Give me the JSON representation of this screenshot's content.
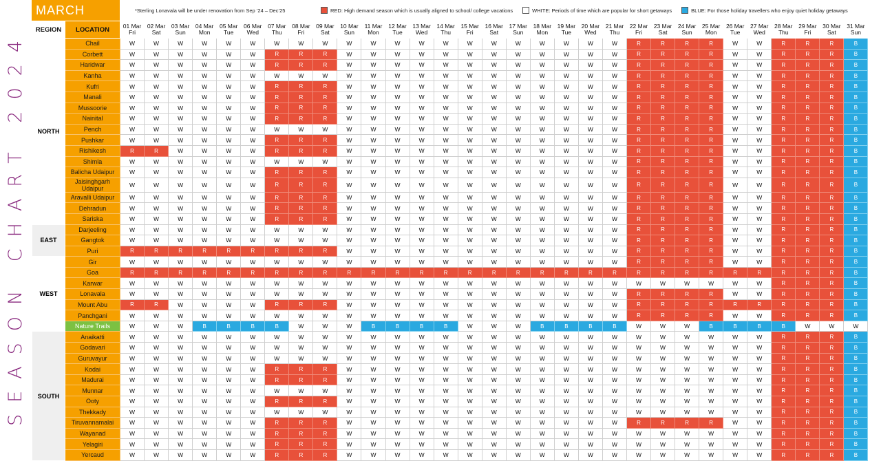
{
  "side_title": "SEASON CHART 2024",
  "month": "MARCH",
  "legend": {
    "note": "*Sterling Lonavala will be under renovation from Sep ’24 – Dec’25",
    "red": "RED: High demand season which is usually aligned to school/ college vacations",
    "white": "WHITE: Periods of time which are popular for short getaways",
    "blue": "BLUE: For those holiday travellers who enjoy quiet holiday getaways"
  },
  "colors": {
    "red": "#e8513a",
    "white": "#ffffff",
    "blue": "#2aa9e0",
    "orange": "#f6a000",
    "green": "#7cc142",
    "purple": "#8a2a7f"
  },
  "headers": {
    "region": "REGION",
    "location": "LOCATION"
  },
  "days": [
    {
      "date": "01 Mar",
      "dow": "Fri"
    },
    {
      "date": "02 Mar",
      "dow": "Sat"
    },
    {
      "date": "03 Mar",
      "dow": "Sun"
    },
    {
      "date": "04 Mar",
      "dow": "Mon"
    },
    {
      "date": "05 Mar",
      "dow": "Tue"
    },
    {
      "date": "06 Mar",
      "dow": "Wed"
    },
    {
      "date": "07 Mar",
      "dow": "Thu"
    },
    {
      "date": "08 Mar",
      "dow": "Fri"
    },
    {
      "date": "09 Mar",
      "dow": "Sat"
    },
    {
      "date": "10 Mar",
      "dow": "Sun"
    },
    {
      "date": "11 Mar",
      "dow": "Mon"
    },
    {
      "date": "12 Mar",
      "dow": "Tue"
    },
    {
      "date": "13 Mar",
      "dow": "Wed"
    },
    {
      "date": "14 Mar",
      "dow": "Thu"
    },
    {
      "date": "15 Mar",
      "dow": "Fri"
    },
    {
      "date": "16 Mar",
      "dow": "Sat"
    },
    {
      "date": "17 Mar",
      "dow": "Sun"
    },
    {
      "date": "18 Mar",
      "dow": "Mon"
    },
    {
      "date": "19 Mar",
      "dow": "Tue"
    },
    {
      "date": "20 Mar",
      "dow": "Wed"
    },
    {
      "date": "21 Mar",
      "dow": "Thu"
    },
    {
      "date": "22 Mar",
      "dow": "Fri"
    },
    {
      "date": "23 Mar",
      "dow": "Sat"
    },
    {
      "date": "24 Mar",
      "dow": "Sun"
    },
    {
      "date": "25 Mar",
      "dow": "Mon"
    },
    {
      "date": "26 Mar",
      "dow": "Tue"
    },
    {
      "date": "27 Mar",
      "dow": "Wed"
    },
    {
      "date": "28 Mar",
      "dow": "Thu"
    },
    {
      "date": "29 Mar",
      "dow": "Fri"
    },
    {
      "date": "30 Mar",
      "dow": "Sat"
    },
    {
      "date": "31 Mar",
      "dow": "Sun"
    }
  ],
  "regions": [
    {
      "name": "NORTH",
      "locations": [
        {
          "name": "Chail",
          "codes": "WWWWWWWWWWWWWWWWWWWWWRRRRWWRRRB"
        },
        {
          "name": "Corbett",
          "codes": "WWWWWWRRRWWWWWWWWWWWWRRRRWWRRRB"
        },
        {
          "name": "Haridwar",
          "codes": "WWWWWWRRRWWWWWWWWWWWWRRRRWWRRRB"
        },
        {
          "name": "Kanha",
          "codes": "WWWWWWWWWWWWWWWWWWWWWRRRRWWRRRB"
        },
        {
          "name": "Kufri",
          "codes": "WWWWWWRRRWWWWWWWWWWWWRRRRWWRRRB"
        },
        {
          "name": "Manali",
          "codes": "WWWWWWRRRWWWWWWWWWWWWRRRRWWRRRB"
        },
        {
          "name": "Mussoorie",
          "codes": "WWWWWWRRRWWWWWWWWWWWWRRRRWWRRRB"
        },
        {
          "name": "Nainital",
          "codes": "WWWWWWRRRWWWWWWWWWWWWRRRRWWRRRB"
        },
        {
          "name": "Pench",
          "codes": "WWWWWWWWWWWWWWWWWWWWWRRRRWWRRRB"
        },
        {
          "name": "Pushkar",
          "codes": "WWWWWWRRRWWWWWWWWWWWWRRRRWWRRRB"
        },
        {
          "name": "Rishikesh",
          "codes": "RRWWWWRRRWWWWWWWWWWWWRRRRWWRRRB"
        },
        {
          "name": "Shimla",
          "codes": "WWWWWWWWWWWWWWWWWWWWWRRRRWWRRRB"
        },
        {
          "name": "Balicha Udaipur",
          "codes": "WWWWWWRRRWWWWWWWWWWWWRRRRWWRRRB"
        },
        {
          "name": "Jaisinghgarh Udaipur",
          "codes": "WWWWWWRRRWWWWWWWWWWWWRRRRWWRRRB"
        },
        {
          "name": "Aravalli Udaipur",
          "codes": "WWWWWWRRRWWWWWWWWWWWWRRRRWWRRRB"
        },
        {
          "name": "Dehradun",
          "codes": "WWWWWWRRRWWWWWWWWWWWWRRRRWWRRRB"
        },
        {
          "name": "Sariska",
          "codes": "WWWWWWRRRWWWWWWWWWWWWRRRRWWRRRB"
        }
      ]
    },
    {
      "name": "EAST",
      "locations": [
        {
          "name": "Darjeeling",
          "codes": "WWWWWWWWWWWWWWWWWWWWWRRRRWWRRRB"
        },
        {
          "name": "Gangtok",
          "codes": "WWWWWWWWWWWWWWWWWWWWWRRRRWWRRRB"
        },
        {
          "name": "Puri",
          "codes": "RRRRRRRRRWWWWWWWWWWWWRRRRWWRRRB"
        }
      ]
    },
    {
      "name": "WEST",
      "locations": [
        {
          "name": "Gir",
          "codes": "WWWWWWWWWWWWWWWWWWWWWRRRRWWRRRB"
        },
        {
          "name": "Goa",
          "codes": "RRRRRRRRRRRRRRRRRRRRRRRRRRRRRRB"
        },
        {
          "name": "Karwar",
          "codes": "WWWWWWWWWWWWWWWWWWWWWWWWWWWRRRB"
        },
        {
          "name": "Lonavala",
          "codes": "WWWWWWWWWWWWWWWWWWWWWRRRRWWRRRB"
        },
        {
          "name": "Mount Abu",
          "codes": "RRWWWWRRRWWWWWWWWWWWWRRRRRRRRRB"
        },
        {
          "name": "Panchgani",
          "codes": "WWWWWWWWWWWWWWWWWWWWWRRRRWWRRRB"
        },
        {
          "name": "Nature Trails",
          "green": true,
          "codes": "WWWBBBBWWWBBBBWWWBBBBWWWBBBBWWW"
        }
      ]
    },
    {
      "name": "SOUTH",
      "locations": [
        {
          "name": "Anaikatti",
          "codes": "WWWWWWWWWWWWWWWWWWWWWWWWWWWRRRB"
        },
        {
          "name": "Godavari",
          "codes": "WWWWWWWWWWWWWWWWWWWWWWWWWWWRRRB"
        },
        {
          "name": "Guruvayur",
          "codes": "WWWWWWWWWWWWWWWWWWWWWWWWWWWRRRB"
        },
        {
          "name": "Kodai",
          "codes": "WWWWWWRRRWWWWWWWWWWWWWWWWWWRRRB"
        },
        {
          "name": "Madurai",
          "codes": "WWWWWWRRRWWWWWWWWWWWWWWWWWWRRRB"
        },
        {
          "name": "Munnar",
          "codes": "WWWWWWWWWWWWWWWWWWWWWWWWWWWRRRB"
        },
        {
          "name": "Ooty",
          "codes": "WWWWWWRRRWWWWWWWWWWWWWWWWWWRRRB"
        },
        {
          "name": "Thekkady",
          "codes": "WWWWWWWWWWWWWWWWWWWWWWWWWWWRRRB"
        },
        {
          "name": "Tiruvannamalai",
          "codes": "WWWWWWRRRWWWWWWWWWWWWRRRRWWRRRB"
        },
        {
          "name": "Wayanad",
          "codes": "WWWWWWRRRWWWWWWWWWWWWWWWWWWRRRB"
        },
        {
          "name": "Yelagiri",
          "codes": "WWWWWWRRRWWWWWWWWWWWWWWWWWWRRRB"
        },
        {
          "name": "Yercaud",
          "codes": "WWWWWWRRRWWWWWWWWWWWWWWWWWWRRRB"
        }
      ]
    }
  ]
}
